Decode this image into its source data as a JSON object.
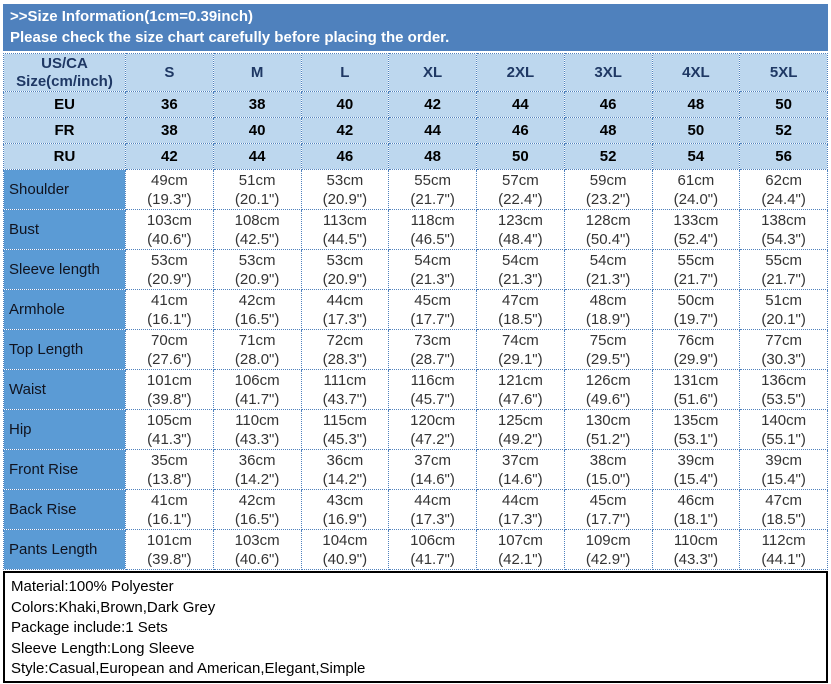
{
  "banner": {
    "line1": ">>Size Information(1cm=0.39inch)",
    "line2": "Please check the size chart carefully before placing the order."
  },
  "size_chart": {
    "corner_header": "US/CA\nSize(cm/inch)",
    "size_labels": [
      "S",
      "M",
      "L",
      "XL",
      "2XL",
      "3XL",
      "4XL",
      "5XL"
    ],
    "region_rows": [
      {
        "label": "EU",
        "values": [
          "36",
          "38",
          "40",
          "42",
          "44",
          "46",
          "48",
          "50"
        ]
      },
      {
        "label": "FR",
        "values": [
          "38",
          "40",
          "42",
          "44",
          "46",
          "48",
          "50",
          "52"
        ]
      },
      {
        "label": "RU",
        "values": [
          "42",
          "44",
          "46",
          "48",
          "50",
          "52",
          "54",
          "56"
        ]
      }
    ],
    "measurement_rows": [
      {
        "label": "Shoulder",
        "cm": [
          "49cm",
          "51cm",
          "53cm",
          "55cm",
          "57cm",
          "59cm",
          "61cm",
          "62cm"
        ],
        "inch": [
          "(19.3\")",
          "(20.1\")",
          "(20.9\")",
          "(21.7\")",
          "(22.4\")",
          "(23.2\")",
          "(24.0\")",
          "(24.4\")"
        ]
      },
      {
        "label": "Bust",
        "cm": [
          "103cm",
          "108cm",
          "113cm",
          "118cm",
          "123cm",
          "128cm",
          "133cm",
          "138cm"
        ],
        "inch": [
          "(40.6\")",
          "(42.5\")",
          "(44.5\")",
          "(46.5\")",
          "(48.4\")",
          "(50.4\")",
          "(52.4\")",
          "(54.3\")"
        ]
      },
      {
        "label": "Sleeve length",
        "cm": [
          "53cm",
          "53cm",
          "53cm",
          "54cm",
          "54cm",
          "54cm",
          "55cm",
          "55cm"
        ],
        "inch": [
          "(20.9\")",
          "(20.9\")",
          "(20.9\")",
          "(21.3\")",
          "(21.3\")",
          "(21.3\")",
          "(21.7\")",
          "(21.7\")"
        ]
      },
      {
        "label": "Armhole",
        "cm": [
          "41cm",
          "42cm",
          "44cm",
          "45cm",
          "47cm",
          "48cm",
          "50cm",
          "51cm"
        ],
        "inch": [
          "(16.1\")",
          "(16.5\")",
          "(17.3\")",
          "(17.7\")",
          "(18.5\")",
          "(18.9\")",
          "(19.7\")",
          "(20.1\")"
        ]
      },
      {
        "label": "Top Length",
        "cm": [
          "70cm",
          "71cm",
          "72cm",
          "73cm",
          "74cm",
          "75cm",
          "76cm",
          "77cm"
        ],
        "inch": [
          "(27.6\")",
          "(28.0\")",
          "(28.3\")",
          "(28.7\")",
          "(29.1\")",
          "(29.5\")",
          "(29.9\")",
          "(30.3\")"
        ]
      },
      {
        "label": "Waist",
        "cm": [
          "101cm",
          "106cm",
          "111cm",
          "116cm",
          "121cm",
          "126cm",
          "131cm",
          "136cm"
        ],
        "inch": [
          "(39.8\")",
          "(41.7\")",
          "(43.7\")",
          "(45.7\")",
          "(47.6\")",
          "(49.6\")",
          "(51.6\")",
          "(53.5\")"
        ]
      },
      {
        "label": "Hip",
        "cm": [
          "105cm",
          "110cm",
          "115cm",
          "120cm",
          "125cm",
          "130cm",
          "135cm",
          "140cm"
        ],
        "inch": [
          "(41.3\")",
          "(43.3\")",
          "(45.3\")",
          "(47.2\")",
          "(49.2\")",
          "(51.2\")",
          "(53.1\")",
          "(55.1\")"
        ]
      },
      {
        "label": "Front Rise",
        "cm": [
          "35cm",
          "36cm",
          "36cm",
          "37cm",
          "37cm",
          "38cm",
          "39cm",
          "39cm"
        ],
        "inch": [
          "(13.8\")",
          "(14.2\")",
          "(14.2\")",
          "(14.6\")",
          "(14.6\")",
          "(15.0\")",
          "(15.4\")",
          "(15.4\")"
        ]
      },
      {
        "label": "Back Rise",
        "cm": [
          "41cm",
          "42cm",
          "43cm",
          "44cm",
          "44cm",
          "45cm",
          "46cm",
          "47cm"
        ],
        "inch": [
          "(16.1\")",
          "(16.5\")",
          "(16.9\")",
          "(17.3\")",
          "(17.3\")",
          "(17.7\")",
          "(18.1\")",
          "(18.5\")"
        ]
      },
      {
        "label": "Pants Length",
        "cm": [
          "101cm",
          "103cm",
          "104cm",
          "106cm",
          "107cm",
          "109cm",
          "110cm",
          "112cm"
        ],
        "inch": [
          "(39.8\")",
          "(40.6\")",
          "(40.9\")",
          "(41.7\")",
          "(42.1\")",
          "(42.9\")",
          "(43.3\")",
          "(44.1\")"
        ]
      }
    ]
  },
  "product_info": {
    "lines": [
      "Material:100% Polyester",
      "Colors:Khaki,Brown,Dark Grey",
      "Package include:1 Sets",
      "Sleeve Length:Long Sleeve",
      "Style:Casual,European and American,Elegant,Simple"
    ]
  },
  "colors": {
    "banner_blue": "#4f81bd",
    "header_light_blue": "#bdd7ee",
    "label_column_blue": "#5b9bd5",
    "dotted_border_blue": "#4f81bd",
    "header_text_navy": "#1f3864"
  }
}
